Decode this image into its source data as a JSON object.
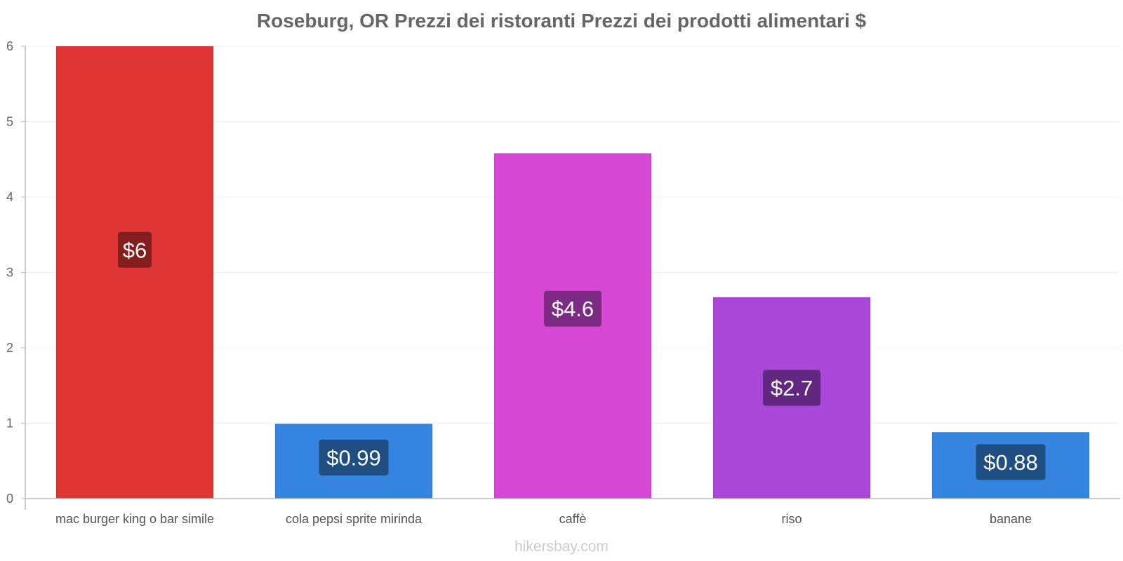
{
  "chart_data": {
    "type": "bar",
    "title": "Roseburg, OR Prezzi dei ristoranti Prezzi dei prodotti alimentari $",
    "xlabel": "",
    "ylabel": "",
    "ylim": [
      0,
      6
    ],
    "yticks": [
      0,
      1,
      2,
      3,
      4,
      5,
      6
    ],
    "grid": true,
    "categories": [
      "mac burger king o bar simile",
      "cola pepsi sprite mirinda",
      "caffè",
      "riso",
      "banane"
    ],
    "values": [
      6,
      0.99,
      4.58,
      2.67,
      0.88
    ],
    "value_labels": [
      "$6",
      "$0.99",
      "$4.6",
      "$2.7",
      "$0.88"
    ],
    "bar_colors": [
      "#e03535",
      "#3584e0",
      "#d647d4",
      "#a847d8",
      "#3584e0"
    ],
    "label_colors": [
      "#7a1c1c",
      "#1c4878",
      "#72277a",
      "#5a2478",
      "#1c4878"
    ]
  },
  "watermark": "hikersbay.com"
}
